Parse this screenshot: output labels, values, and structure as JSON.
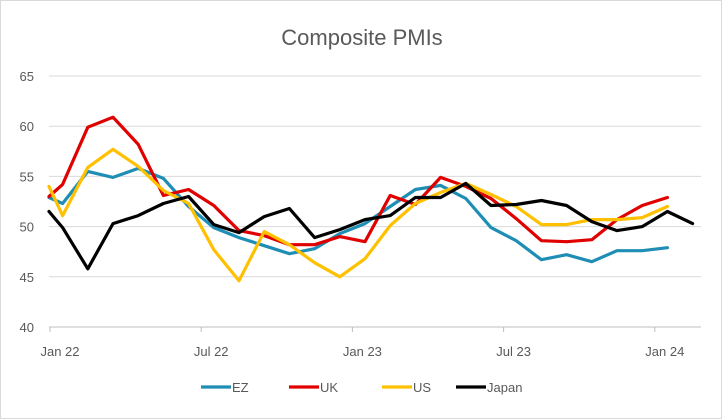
{
  "chart_data": {
    "type": "line",
    "title": "Composite PMIs",
    "xlabel": "",
    "ylabel": "",
    "ylim": [
      40,
      65
    ],
    "yticks": [
      40,
      45,
      50,
      55,
      60,
      65
    ],
    "x": [
      "Jan 22",
      "Feb 22",
      "Mar 22",
      "Apr 22",
      "May 22",
      "Jun 22",
      "Jul 22",
      "Aug 22",
      "Sep 22",
      "Oct 22",
      "Nov 22",
      "Dec 22",
      "Jan 23",
      "Feb 23",
      "Mar 23",
      "Apr 23",
      "May 23",
      "Jun 23",
      "Jul 23",
      "Aug 23",
      "Sep 23",
      "Oct 23",
      "Nov 23",
      "Dec 23",
      "Jan 24",
      "Feb 24"
    ],
    "xtick_labels": [
      {
        "index": 0,
        "label": "Jan 22"
      },
      {
        "index": 6,
        "label": "Jul 22"
      },
      {
        "index": 12,
        "label": "Jan 23"
      },
      {
        "index": 18,
        "label": "Jul 23"
      },
      {
        "index": 24,
        "label": "Jan 24"
      }
    ],
    "grid": true,
    "legend": "bottom",
    "series": [
      {
        "name": "EZ",
        "color": "#1F8EB5",
        "values": [
          52.3,
          55.5,
          54.9,
          55.8,
          54.8,
          52.0,
          49.9,
          48.9,
          48.1,
          47.3,
          47.8,
          49.3,
          50.3,
          52.0,
          53.7,
          54.1,
          52.8,
          49.9,
          48.6,
          46.7,
          47.2,
          46.5,
          47.6,
          47.6,
          47.9,
          null
        ]
      },
      {
        "name": "UK",
        "color": "#E00000",
        "values": [
          54.2,
          59.9,
          60.9,
          58.2,
          53.1,
          53.7,
          52.1,
          49.6,
          49.1,
          48.2,
          48.2,
          49.0,
          48.5,
          53.1,
          52.2,
          54.9,
          54.0,
          52.8,
          50.8,
          48.6,
          48.5,
          48.7,
          50.7,
          52.1,
          52.9,
          null
        ]
      },
      {
        "name": "US",
        "color": "#FFC000",
        "values": [
          51.1,
          55.9,
          57.7,
          56.0,
          53.6,
          52.3,
          47.7,
          44.6,
          49.5,
          48.2,
          46.4,
          45.0,
          46.8,
          50.1,
          52.3,
          53.4,
          54.3,
          53.2,
          52.0,
          50.2,
          50.2,
          50.7,
          50.7,
          50.9,
          52.0,
          null
        ]
      },
      {
        "name": "Japan",
        "color": "#000000",
        "values": [
          49.9,
          45.8,
          50.3,
          51.1,
          52.3,
          53.0,
          50.2,
          49.4,
          51.0,
          51.8,
          48.9,
          49.7,
          50.7,
          51.1,
          52.9,
          52.9,
          54.3,
          52.1,
          52.2,
          52.6,
          52.1,
          50.5,
          49.6,
          50.0,
          51.5,
          50.3
        ]
      }
    ],
    "y_first_point": {
      "EZ": 52.9,
      "UK": 53.0,
      "US": 54.0,
      "Japan": 51.5
    }
  }
}
